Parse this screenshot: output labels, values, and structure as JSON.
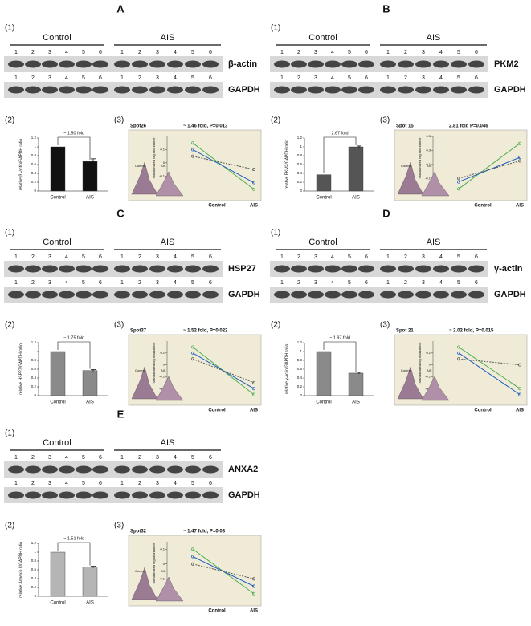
{
  "panels": [
    {
      "letter": "A",
      "blot_label": "(1)",
      "groups": [
        "Control",
        "AIS"
      ],
      "lanes": [
        1,
        2,
        3,
        4,
        5,
        6
      ],
      "protein": "β-actin",
      "loading": "GAPDH",
      "bar_chart": {
        "label": "(2)",
        "y_label": "relative β -actin/GAPDH ratio",
        "annotation": "~ 1.50 fold",
        "categories": [
          "Control",
          "AIS"
        ],
        "values": [
          1,
          0.67
        ],
        "errors": [
          0,
          0.06
        ],
        "color": "#111111",
        "ylim": [
          0,
          1.2
        ],
        "yticks": [
          0,
          0.2,
          0.4,
          0.6,
          0.8,
          1,
          1.2
        ]
      },
      "line_chart": {
        "label": "(3)",
        "title": "Spot26",
        "annotation": "~ 1.46 fold,  P=0.013",
        "y_label": "Standardized log abundance",
        "categories": [
          "Control",
          "AIS"
        ],
        "inset_labels": [
          "Control",
          "AIS"
        ],
        "ylim": [
          -0.25,
          0.2
        ],
        "yticks": [
          -0.2,
          -0.1,
          0,
          0.1
        ],
        "series": [
          {
            "color": "#4caf50",
            "values": [
              0.15,
              -0.2
            ]
          },
          {
            "color": "#1f5fbf",
            "values": [
              0.1,
              -0.15
            ]
          },
          {
            "color": "#555555",
            "values": [
              0.05,
              -0.05
            ]
          }
        ]
      }
    },
    {
      "letter": "B",
      "blot_label": "(1)",
      "groups": [
        "Control",
        "AIS"
      ],
      "lanes": [
        1,
        2,
        3,
        4,
        5,
        6
      ],
      "protein": "PKM2",
      "loading": "GAPDH",
      "bar_chart": {
        "label": "(2)",
        "y_label": "relative PKM2/GAPDH ratio",
        "annotation": "2.67 fold",
        "categories": [
          "Control",
          "AIS"
        ],
        "values": [
          0.37,
          1
        ],
        "errors": [
          0,
          0.02
        ],
        "color": "#555555",
        "ylim": [
          0,
          1.2
        ],
        "yticks": [
          0,
          0.2,
          0.4,
          0.6,
          0.8,
          1,
          1.2
        ]
      },
      "line_chart": {
        "label": "(3)",
        "title": "Spot 15",
        "annotation": "2.81 fold  P=0.046",
        "y_label": "Standardized log abundance",
        "categories": [
          "Control",
          "AIS"
        ],
        "inset_labels": [
          "Control",
          "AIS"
        ],
        "ylim": [
          -0.35,
          0.5
        ],
        "yticks": [
          -0.3,
          -0.1,
          0.1,
          0.3,
          0.5
        ],
        "series": [
          {
            "color": "#4caf50",
            "values": [
              -0.25,
              0.4
            ]
          },
          {
            "color": "#1f5fbf",
            "values": [
              -0.15,
              0.2
            ]
          },
          {
            "color": "#555555",
            "values": [
              -0.1,
              0.15
            ]
          }
        ]
      }
    },
    {
      "letter": "C",
      "blot_label": "(1)",
      "groups": [
        "Control",
        "AIS"
      ],
      "lanes": [
        1,
        2,
        3,
        4,
        5,
        6
      ],
      "protein": "HSP27",
      "loading": "GAPDH",
      "bar_chart": {
        "label": "(2)",
        "y_label": "relative HSP27/GAPDH ratio",
        "annotation": "~ 1.75 fold",
        "categories": [
          "Control",
          "AIS"
        ],
        "values": [
          1,
          0.57
        ],
        "errors": [
          0,
          0.02
        ],
        "color": "#8a8a8a",
        "ylim": [
          0,
          1.2
        ],
        "yticks": [
          0,
          0.2,
          0.4,
          0.6,
          0.8,
          1,
          1.2
        ]
      },
      "line_chart": {
        "label": "(3)",
        "title": "Spot37",
        "annotation": "~ 1.52 fold,  P=0.022",
        "y_label": "Standardized log abundance",
        "categories": [
          "Control",
          "AIS"
        ],
        "inset_labels": [
          "Control",
          "AIS"
        ],
        "ylim": [
          -0.3,
          0.2
        ],
        "yticks": [
          -0.2,
          -0.1,
          0,
          0.1
        ],
        "series": [
          {
            "color": "#4caf50",
            "values": [
              0.15,
              -0.25
            ]
          },
          {
            "color": "#1f5fbf",
            "values": [
              0.1,
              -0.2
            ]
          },
          {
            "color": "#555555",
            "values": [
              0.05,
              -0.15
            ]
          }
        ]
      }
    },
    {
      "letter": "D",
      "blot_label": "(1)",
      "groups": [
        "Control",
        "AIS"
      ],
      "lanes": [
        1,
        2,
        3,
        4,
        5,
        6
      ],
      "protein": "γ-actin",
      "loading": "GAPDH",
      "bar_chart": {
        "label": "(2)",
        "y_label": "relative  γ-actin/GAPDH ratio",
        "annotation": "~ 1.97 fold",
        "categories": [
          "Control",
          "AIS"
        ],
        "values": [
          1,
          0.51
        ],
        "errors": [
          0,
          0.02
        ],
        "color": "#8a8a8a",
        "ylim": [
          0,
          1.2
        ],
        "yticks": [
          0,
          0.2,
          0.4,
          0.6,
          0.8,
          1,
          1.2
        ]
      },
      "line_chart": {
        "label": "(3)",
        "title": "Spot 21",
        "annotation": "~ 2.02 fold,  P=0.015",
        "y_label": "Standardized log abundance",
        "categories": [
          "Control",
          "AIS"
        ],
        "inset_labels": [
          "Control",
          "AIS"
        ],
        "ylim": [
          -0.3,
          0.2
        ],
        "yticks": [
          -0.2,
          -0.1,
          0,
          0.1
        ],
        "series": [
          {
            "color": "#4caf50",
            "values": [
              0.15,
              -0.2
            ]
          },
          {
            "color": "#1f5fbf",
            "values": [
              0.1,
              -0.25
            ]
          },
          {
            "color": "#555555",
            "values": [
              0.05,
              0
            ]
          }
        ]
      }
    },
    {
      "letter": "E",
      "blot_label": "(1)",
      "groups": [
        "Control",
        "AIS"
      ],
      "lanes": [
        1,
        2,
        3,
        4,
        5,
        6
      ],
      "protein": "ANXA2",
      "loading": "GAPDH",
      "bar_chart": {
        "label": "(2)",
        "y_label": "relative Annexin II/GAPDH ratio",
        "annotation": "~ 1.51 fold",
        "categories": [
          "Control",
          "AIS"
        ],
        "values": [
          1,
          0.66
        ],
        "errors": [
          0,
          0.02
        ],
        "color": "#b5b5b5",
        "ylim": [
          0,
          1.2
        ],
        "yticks": [
          0,
          0.2,
          0.4,
          0.6,
          0.8,
          1,
          1.2
        ]
      },
      "line_chart": {
        "label": "(3)",
        "title": "Spot32",
        "annotation": "~ 1.47 fold,  P=0.03",
        "y_label": "Standardized log abundance",
        "categories": [
          "Control",
          "AIS"
        ],
        "inset_labels": [
          "Control",
          "AIS"
        ],
        "ylim": [
          -0.25,
          0.15
        ],
        "yticks": [
          -0.2,
          -0.1,
          0,
          0.1
        ],
        "series": [
          {
            "color": "#4caf50",
            "values": [
              0.1,
              -0.2
            ]
          },
          {
            "color": "#1f5fbf",
            "values": [
              0.05,
              -0.15
            ]
          },
          {
            "color": "#555555",
            "values": [
              0,
              -0.1
            ]
          }
        ]
      }
    }
  ]
}
